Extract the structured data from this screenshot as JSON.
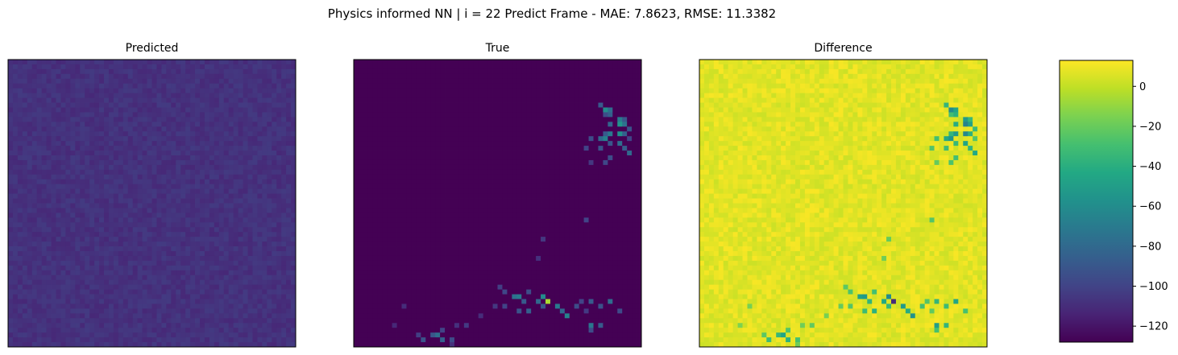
{
  "figure": {
    "suptitle": "Physics informed NN | i = 22 Predict Frame - MAE: 7.8623, RMSE: 11.3382"
  },
  "chart_data": [
    {
      "type": "heatmap",
      "title": "Predicted",
      "grid": false,
      "colormap": "viridis",
      "value_range": [
        -128,
        13
      ],
      "description_level": "nearly uniform dark purple field, values roughly -115 to -105"
    },
    {
      "type": "heatmap",
      "title": "True",
      "grid": false,
      "colormap": "viridis",
      "value_range": [
        -128,
        13
      ],
      "background_level": -128,
      "hot_cells": [
        {
          "col": 39,
          "row": 10,
          "v": -88
        },
        {
          "col": 40,
          "row": 11,
          "v": -60
        },
        {
          "col": 41,
          "row": 11,
          "v": -78
        },
        {
          "col": 40,
          "row": 12,
          "v": -95
        },
        {
          "col": 41,
          "row": 12,
          "v": -85
        },
        {
          "col": 42,
          "row": 13,
          "v": -70
        },
        {
          "col": 43,
          "row": 13,
          "v": -90
        },
        {
          "col": 41,
          "row": 14,
          "v": -82
        },
        {
          "col": 42,
          "row": 14,
          "v": -55
        },
        {
          "col": 43,
          "row": 14,
          "v": -75
        },
        {
          "col": 44,
          "row": 15,
          "v": -92
        },
        {
          "col": 40,
          "row": 16,
          "v": -88
        },
        {
          "col": 41,
          "row": 16,
          "v": -70
        },
        {
          "col": 42,
          "row": 17,
          "v": -58
        },
        {
          "col": 43,
          "row": 17,
          "v": -85
        },
        {
          "col": 38,
          "row": 18,
          "v": -95
        },
        {
          "col": 39,
          "row": 18,
          "v": -80
        },
        {
          "col": 40,
          "row": 18,
          "v": -66
        },
        {
          "col": 41,
          "row": 19,
          "v": -90
        },
        {
          "col": 42,
          "row": 19,
          "v": -78
        },
        {
          "col": 44,
          "row": 18,
          "v": -100
        },
        {
          "col": 37,
          "row": 20,
          "v": -100
        },
        {
          "col": 39,
          "row": 20,
          "v": -92
        },
        {
          "col": 43,
          "row": 20,
          "v": -88
        },
        {
          "col": 44,
          "row": 21,
          "v": -80
        },
        {
          "col": 41,
          "row": 22,
          "v": -95
        },
        {
          "col": 38,
          "row": 23,
          "v": -105
        },
        {
          "col": 40,
          "row": 23,
          "v": -98
        },
        {
          "col": 37,
          "row": 36,
          "v": -100
        },
        {
          "col": 30,
          "row": 41,
          "v": -105
        },
        {
          "col": 29,
          "row": 45,
          "v": -108
        },
        {
          "col": 23,
          "row": 52,
          "v": -102
        },
        {
          "col": 24,
          "row": 53,
          "v": -98
        },
        {
          "col": 25,
          "row": 54,
          "v": -75
        },
        {
          "col": 26,
          "row": 54,
          "v": -70
        },
        {
          "col": 27,
          "row": 55,
          "v": -88
        },
        {
          "col": 28,
          "row": 53,
          "v": -95
        },
        {
          "col": 29,
          "row": 55,
          "v": -80
        },
        {
          "col": 30,
          "row": 54,
          "v": -60
        },
        {
          "col": 31,
          "row": 55,
          "v": -5
        },
        {
          "col": 32,
          "row": 56,
          "v": -70
        },
        {
          "col": 33,
          "row": 57,
          "v": -82
        },
        {
          "col": 30,
          "row": 56,
          "v": -90
        },
        {
          "col": 28,
          "row": 57,
          "v": -85
        },
        {
          "col": 26,
          "row": 57,
          "v": -92
        },
        {
          "col": 24,
          "row": 56,
          "v": -100
        },
        {
          "col": 22,
          "row": 56,
          "v": -105
        },
        {
          "col": 34,
          "row": 58,
          "v": -65
        },
        {
          "col": 35,
          "row": 56,
          "v": -95
        },
        {
          "col": 36,
          "row": 55,
          "v": -100
        },
        {
          "col": 38,
          "row": 55,
          "v": -88
        },
        {
          "col": 39,
          "row": 56,
          "v": -92
        },
        {
          "col": 41,
          "row": 55,
          "v": -78
        },
        {
          "col": 42,
          "row": 57,
          "v": -96
        },
        {
          "col": 37,
          "row": 57,
          "v": -104
        },
        {
          "col": 38,
          "row": 60,
          "v": -72
        },
        {
          "col": 39,
          "row": 61,
          "v": -88
        },
        {
          "col": 38,
          "row": 62,
          "v": -96
        },
        {
          "col": 20,
          "row": 58,
          "v": -110
        },
        {
          "col": 18,
          "row": 60,
          "v": -104
        },
        {
          "col": 16,
          "row": 61,
          "v": -108
        },
        {
          "col": 14,
          "row": 62,
          "v": -100
        },
        {
          "col": 12,
          "row": 63,
          "v": -90
        },
        {
          "col": 13,
          "row": 63,
          "v": -78
        },
        {
          "col": 14,
          "row": 64,
          "v": -85
        },
        {
          "col": 15,
          "row": 64,
          "v": -96
        },
        {
          "col": 11,
          "row": 64,
          "v": -92
        },
        {
          "col": 10,
          "row": 63,
          "v": -102
        },
        {
          "col": 15,
          "row": 65,
          "v": -108
        },
        {
          "col": 8,
          "row": 56,
          "v": -110
        },
        {
          "col": 6,
          "row": 60,
          "v": -112
        }
      ]
    },
    {
      "type": "heatmap",
      "title": "Difference",
      "grid": false,
      "colormap": "viridis",
      "value_range": [
        -128,
        13
      ],
      "description_level": "mostly yellow (values ~0 to 10), with negative regions mirroring the True panel"
    }
  ],
  "colorbar": {
    "tick_labels": [
      "0",
      "−20",
      "−40",
      "−60",
      "−80",
      "−100",
      "−120"
    ],
    "tick_values": [
      0,
      -20,
      -40,
      -60,
      -80,
      -100,
      -120
    ],
    "range": [
      -128,
      13
    ]
  }
}
